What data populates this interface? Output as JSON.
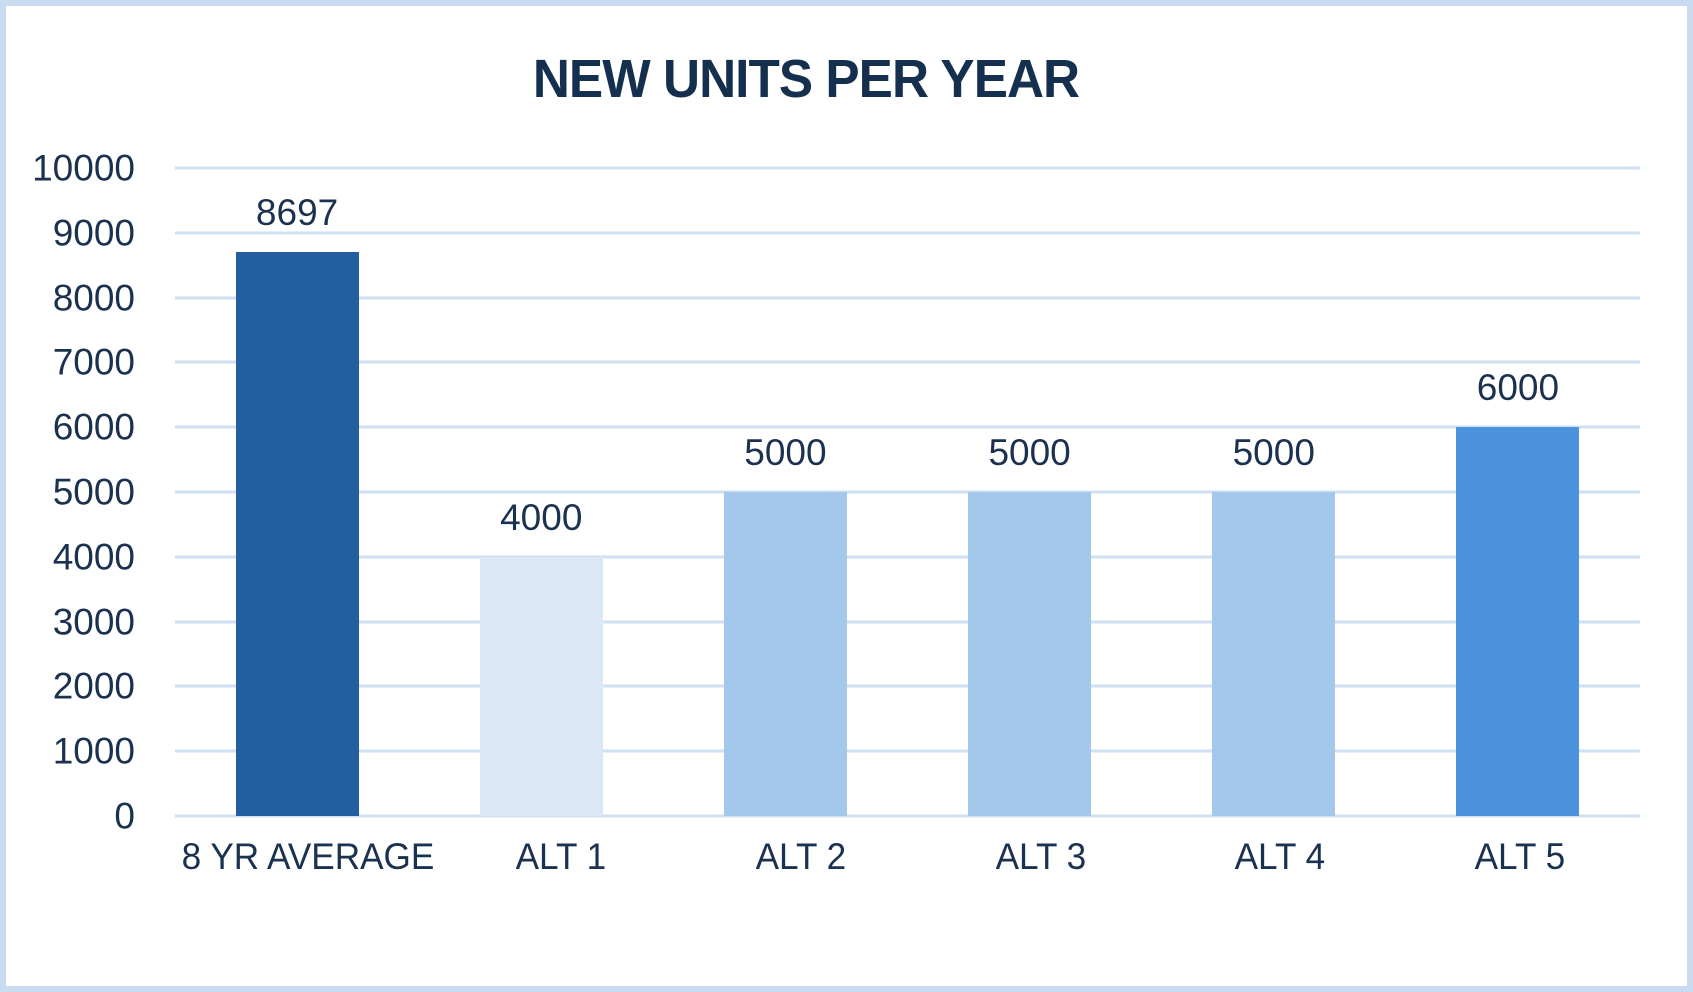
{
  "colors": {
    "frame_border": "#c8dbf0",
    "background": "#ffffff",
    "gridline": "#cfe0f2",
    "text": "#1b3150",
    "title_text": "#14304e"
  },
  "chart_data": {
    "type": "bar",
    "title": "NEW UNITS PER YEAR",
    "categories": [
      "8 YR AVERAGE",
      "ALT 1",
      "ALT 2",
      "ALT 3",
      "ALT 4",
      "ALT 5"
    ],
    "values": [
      8697,
      4000,
      5000,
      5000,
      5000,
      6000
    ],
    "data_labels": [
      "8697",
      "4000",
      "5000",
      "5000",
      "5000",
      "6000"
    ],
    "bar_colors": [
      "#235fa0",
      "#dbe7f5",
      "#a3c8ec",
      "#a3c8ec",
      "#a3c8ec",
      "#4d92dc"
    ],
    "xlabel": "",
    "ylabel": "",
    "ylim": [
      0,
      10000
    ],
    "yticks": [
      0,
      1000,
      2000,
      3000,
      4000,
      5000,
      6000,
      7000,
      8000,
      9000,
      10000
    ],
    "ytick_labels": [
      "0",
      "1000",
      "2000",
      "3000",
      "4000",
      "5000",
      "6000",
      "7000",
      "8000",
      "9000",
      "10000"
    ],
    "grid": true,
    "legend": false
  }
}
